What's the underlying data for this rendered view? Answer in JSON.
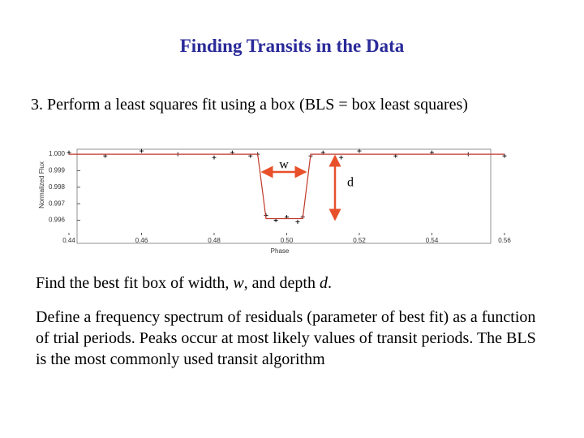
{
  "slide": {
    "title": "Finding Transits in the Data",
    "step": "3.  Perform a least squares fit using a box (BLS = box least squares)",
    "paragraph1": [
      "Find the best fit box of width, ",
      "w",
      ", and depth ",
      "d",
      "."
    ],
    "paragraph2": "Define a frequency spectrum of residuals (parameter of best fit) as a function of trial periods. Peaks occur at most likely values of transit periods. The BLS is the most commonly used transit algorithm"
  },
  "chart_data": {
    "type": "line",
    "y_label": "Normalized Flux",
    "x_label": "Phase",
    "annotations": [
      "w",
      "d"
    ],
    "x": [
      0.44,
      0.45,
      0.46,
      0.47,
      0.48,
      0.485,
      0.49,
      0.492,
      0.4943,
      0.497,
      0.5,
      0.503,
      0.5044,
      0.5066,
      0.51,
      0.515,
      0.52,
      0.53,
      0.54,
      0.55,
      0.56
    ],
    "series": [
      {
        "style": "points",
        "color": "#000000",
        "values": [
          1.0001,
          0.9999,
          1.0002,
          1.0,
          0.9998,
          1.0001,
          0.9999,
          1.0,
          0.9963,
          0.996,
          0.9962,
          0.9959,
          0.9962,
          0.9999,
          1.0001,
          0.9998,
          1.0002,
          0.9999,
          1.0001,
          1.0,
          0.9999
        ]
      },
      {
        "style": "line",
        "color": "#c0392b",
        "values": [
          1.0,
          1.0,
          1.0,
          1.0,
          1.0,
          1.0,
          1.0,
          1.0,
          0.9961,
          0.9961,
          0.9961,
          0.9961,
          0.9961,
          1.0,
          1.0,
          1.0,
          1.0,
          1.0,
          1.0,
          1.0,
          1.0
        ]
      }
    ],
    "xlim": [
      0.44,
      0.56
    ],
    "ylim": [
      0.9946,
      1.0003
    ],
    "xticks": [
      {
        "value": 0.44,
        "label": "0.44"
      },
      {
        "value": 0.46,
        "label": "0.46"
      },
      {
        "value": 0.48,
        "label": "0.48"
      },
      {
        "value": 0.5,
        "label": "0.50"
      },
      {
        "value": 0.52,
        "label": "0.52"
      },
      {
        "value": 0.54,
        "label": "0.54"
      },
      {
        "value": 0.56,
        "label": "0.56"
      }
    ],
    "yticks": [
      {
        "value": 1.0,
        "label": "1.000"
      },
      {
        "value": 0.999,
        "label": "0.999"
      },
      {
        "value": 0.998,
        "label": "0.998"
      },
      {
        "value": 0.997,
        "label": "0.997"
      },
      {
        "value": 0.996,
        "label": "0.996"
      }
    ]
  }
}
